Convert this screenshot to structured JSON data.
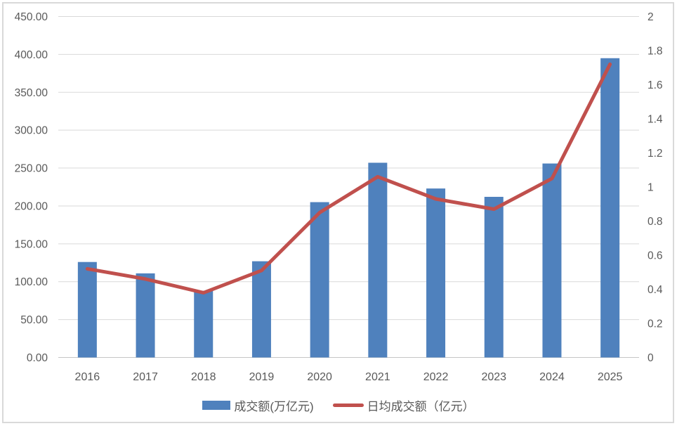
{
  "chart_data": {
    "type": "bar",
    "combo": "bar+line",
    "title": "",
    "categories": [
      "2016",
      "2017",
      "2018",
      "2019",
      "2020",
      "2021",
      "2022",
      "2023",
      "2024",
      "2025"
    ],
    "series": [
      {
        "name": "成交额(万亿元)",
        "type": "bar",
        "axis": "left",
        "color": "#4F81BD",
        "values": [
          126,
          111,
          88,
          127,
          205,
          257,
          223,
          212,
          256,
          395
        ]
      },
      {
        "name": "日均成交额（亿元）",
        "type": "line",
        "axis": "right",
        "color": "#C0504D",
        "values": [
          0.52,
          0.46,
          0.38,
          0.51,
          0.85,
          1.06,
          0.93,
          0.87,
          1.05,
          1.72
        ]
      }
    ],
    "left_axis": {
      "min": 0,
      "max": 450,
      "step": 50,
      "tick_labels": [
        "450.00",
        "400.00",
        "350.00",
        "300.00",
        "250.00",
        "200.00",
        "150.00",
        "100.00",
        "50.00",
        "0.00"
      ]
    },
    "right_axis": {
      "min": 0,
      "max": 2,
      "step": 0.2,
      "tick_labels": [
        "2",
        "1.8",
        "1.6",
        "1.4",
        "1.2",
        "1",
        "0.8",
        "0.6",
        "0.4",
        "0.2",
        "0"
      ]
    },
    "grid": "horizontal",
    "legend_position": "bottom",
    "colors": {
      "gridline": "#D9D9D9",
      "axis_line": "#C6C6C6",
      "tick_text": "#595959",
      "frame_border": "#D9D9D9",
      "background": "#FFFFFF"
    }
  }
}
